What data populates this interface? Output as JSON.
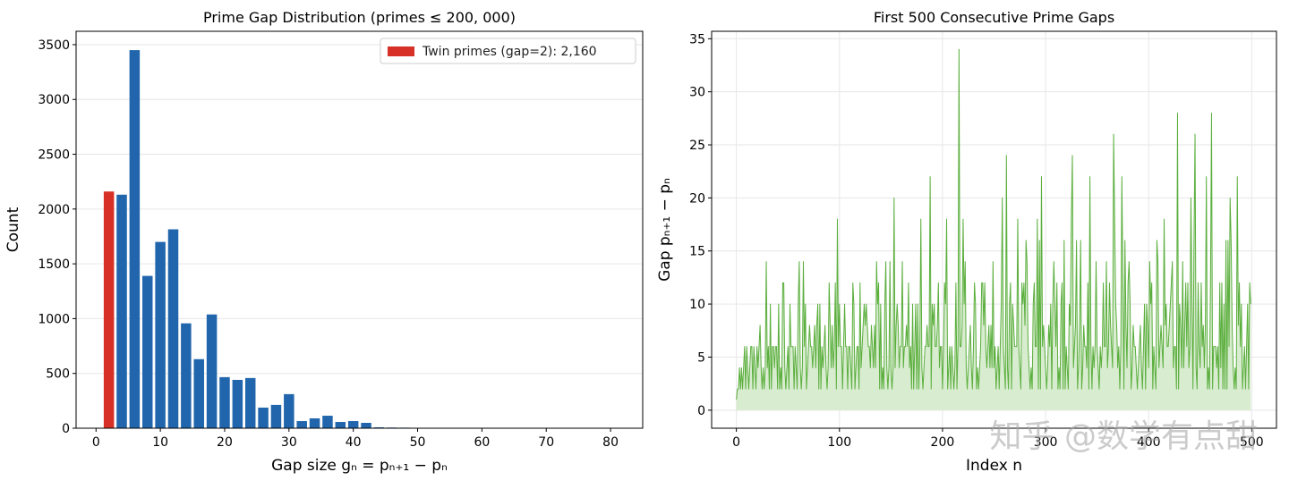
{
  "chart_data": [
    {
      "type": "bar",
      "title": "Prime Gap Distribution (primes ≤ 200, 000)",
      "x_label": "Gap size gₙ = pₙ₊₁ − pₙ",
      "y_label": "Count",
      "x": [
        1,
        2,
        4,
        6,
        8,
        10,
        12,
        14,
        16,
        18,
        20,
        22,
        24,
        26,
        28,
        30,
        32,
        34,
        36,
        38,
        40,
        42,
        44,
        46,
        48,
        50,
        52,
        54,
        56,
        58,
        60,
        62,
        64,
        66,
        68,
        70,
        72
      ],
      "values": [
        1,
        2160,
        2131,
        3450,
        1390,
        1700,
        1815,
        957,
        630,
        1038,
        466,
        441,
        458,
        188,
        213,
        311,
        65,
        90,
        114,
        57,
        65,
        49,
        8,
        6,
        5,
        2,
        3,
        4,
        1,
        1,
        1,
        0,
        1,
        0,
        0,
        0,
        1
      ],
      "color": "#2166ac",
      "highlight": {
        "x": 2,
        "color": "#d73027",
        "label": "Twin primes (gap=2): 2,160"
      },
      "legend": "upper right",
      "xlim": [
        -3.1,
        85
      ],
      "ylim": [
        0,
        3622
      ],
      "xticks": [
        0,
        10,
        20,
        30,
        40,
        50,
        60,
        70,
        80
      ],
      "yticks": [
        0,
        500,
        1000,
        1500,
        2000,
        2500,
        3000,
        3500
      ],
      "grid": "y"
    },
    {
      "type": "area-line",
      "title": "First 500 Consecutive Prime Gaps",
      "x_label": "Index n",
      "y_label": "Gap pₙ₊₁ − pₙ",
      "values": [
        1,
        2,
        2,
        4,
        2,
        4,
        2,
        4,
        6,
        2,
        6,
        4,
        2,
        4,
        6,
        6,
        2,
        6,
        4,
        2,
        6,
        4,
        6,
        8,
        4,
        2,
        4,
        2,
        4,
        14,
        4,
        6,
        2,
        10,
        2,
        6,
        6,
        4,
        6,
        6,
        2,
        10,
        2,
        4,
        2,
        12,
        12,
        4,
        2,
        4,
        6,
        2,
        10,
        6,
        6,
        6,
        2,
        6,
        4,
        2,
        10,
        14,
        4,
        2,
        4,
        14,
        6,
        10,
        2,
        4,
        6,
        8,
        6,
        6,
        4,
        6,
        8,
        4,
        8,
        10,
        2,
        10,
        2,
        6,
        4,
        6,
        8,
        4,
        2,
        4,
        12,
        8,
        4,
        8,
        4,
        6,
        12,
        2,
        18,
        6,
        10,
        6,
        6,
        2,
        6,
        10,
        6,
        6,
        2,
        6,
        6,
        4,
        2,
        12,
        10,
        2,
        4,
        6,
        6,
        2,
        12,
        4,
        6,
        8,
        10,
        8,
        10,
        8,
        6,
        6,
        4,
        8,
        6,
        4,
        8,
        4,
        14,
        10,
        12,
        2,
        10,
        2,
        4,
        2,
        10,
        14,
        4,
        2,
        4,
        14,
        4,
        2,
        4,
        20,
        4,
        8,
        10,
        8,
        4,
        6,
        6,
        14,
        4,
        6,
        6,
        8,
        6,
        12,
        4,
        6,
        2,
        10,
        2,
        6,
        10,
        2,
        10,
        2,
        6,
        18,
        4,
        2,
        4,
        6,
        6,
        8,
        6,
        6,
        22,
        2,
        10,
        8,
        10,
        6,
        6,
        8,
        12,
        4,
        6,
        6,
        2,
        6,
        12,
        10,
        18,
        2,
        4,
        6,
        2,
        6,
        4,
        2,
        4,
        12,
        2,
        6,
        34,
        6,
        6,
        8,
        18,
        10,
        14,
        4,
        2,
        4,
        6,
        8,
        4,
        2,
        6,
        12,
        10,
        2,
        4,
        2,
        4,
        6,
        12,
        12,
        8,
        12,
        6,
        4,
        6,
        8,
        4,
        8,
        4,
        14,
        4,
        6,
        2,
        4,
        6,
        2,
        6,
        10,
        20,
        6,
        4,
        2,
        24,
        4,
        2,
        10,
        12,
        2,
        10,
        8,
        6,
        6,
        6,
        18,
        6,
        4,
        2,
        12,
        10,
        12,
        8,
        16,
        14,
        6,
        4,
        2,
        4,
        2,
        10,
        12,
        6,
        6,
        18,
        2,
        16,
        2,
        22,
        6,
        8,
        6,
        4,
        2,
        4,
        8,
        6,
        10,
        2,
        10,
        14,
        10,
        6,
        12,
        2,
        4,
        2,
        10,
        12,
        2,
        16,
        2,
        6,
        4,
        2,
        10,
        8,
        18,
        24,
        4,
        6,
        8,
        16,
        2,
        4,
        8,
        16,
        2,
        4,
        8,
        6,
        6,
        4,
        12,
        2,
        22,
        6,
        2,
        6,
        4,
        6,
        14,
        6,
        4,
        2,
        6,
        4,
        6,
        12,
        6,
        6,
        14,
        4,
        6,
        12,
        8,
        6,
        4,
        26,
        18,
        10,
        8,
        4,
        6,
        2,
        6,
        22,
        12,
        2,
        16,
        8,
        4,
        12,
        14,
        10,
        2,
        4,
        8,
        6,
        6,
        4,
        2,
        4,
        6,
        8,
        4,
        2,
        6,
        10,
        2,
        10,
        8,
        4,
        14,
        10,
        12,
        2,
        6,
        4,
        2,
        16,
        14,
        4,
        6,
        8,
        6,
        4,
        18,
        8,
        10,
        6,
        6,
        8,
        10,
        12,
        14,
        4,
        6,
        6,
        2,
        28,
        2,
        10,
        8,
        4,
        14,
        4,
        8,
        12,
        6,
        12,
        4,
        6,
        20,
        10,
        2,
        16,
        26,
        4,
        2,
        12,
        6,
        4,
        12,
        6,
        8,
        4,
        8,
        22,
        2,
        4,
        2,
        12,
        28,
        2,
        6,
        6,
        6,
        4,
        6,
        2,
        12,
        4,
        12,
        2,
        10,
        2,
        16,
        2,
        16,
        6,
        20,
        16,
        8,
        4,
        2,
        4,
        2,
        22,
        8,
        12,
        6,
        10,
        2,
        4,
        6,
        2,
        6,
        10,
        2,
        12,
        10
      ],
      "color": "#5aae3c",
      "fill_color": "#d8ecd0",
      "xlim": [
        -24,
        524
      ],
      "ylim": [
        -1.7,
        35.7
      ],
      "xticks": [
        0,
        100,
        200,
        300,
        400,
        500
      ],
      "yticks": [
        0,
        5,
        10,
        15,
        20,
        25,
        30,
        35
      ],
      "grid": "both"
    }
  ],
  "watermark": "知乎 @数学有点甜"
}
